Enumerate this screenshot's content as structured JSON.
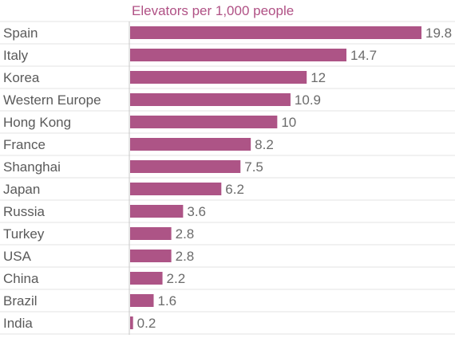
{
  "chart_data": {
    "type": "bar",
    "orientation": "horizontal",
    "title": "Elevators per 1,000 people",
    "categories": [
      "Spain",
      "Italy",
      "Korea",
      "Western Europe",
      "Hong Kong",
      "France",
      "Shanghai",
      "Japan",
      "Russia",
      "Turkey",
      "USA",
      "China",
      "Brazil",
      "India"
    ],
    "values": [
      19.8,
      14.7,
      12,
      10.9,
      10,
      8.2,
      7.5,
      6.2,
      3.6,
      2.8,
      2.8,
      2.2,
      1.6,
      0.2
    ],
    "value_labels": [
      "19.8",
      "14.7",
      "12",
      "10.9",
      "10",
      "8.2",
      "7.5",
      "6.2",
      "3.6",
      "2.8",
      "2.8",
      "2.2",
      "1.6",
      "0.2"
    ],
    "xlim": [
      0,
      19.8
    ],
    "grid": true,
    "colors": {
      "bar": "#ad5486",
      "title": "#b05185",
      "category_text": "#5a5a5a",
      "value_text": "#6b6b6b",
      "gridline": "#e3e3e3",
      "axis": "#c8c8c8"
    }
  }
}
